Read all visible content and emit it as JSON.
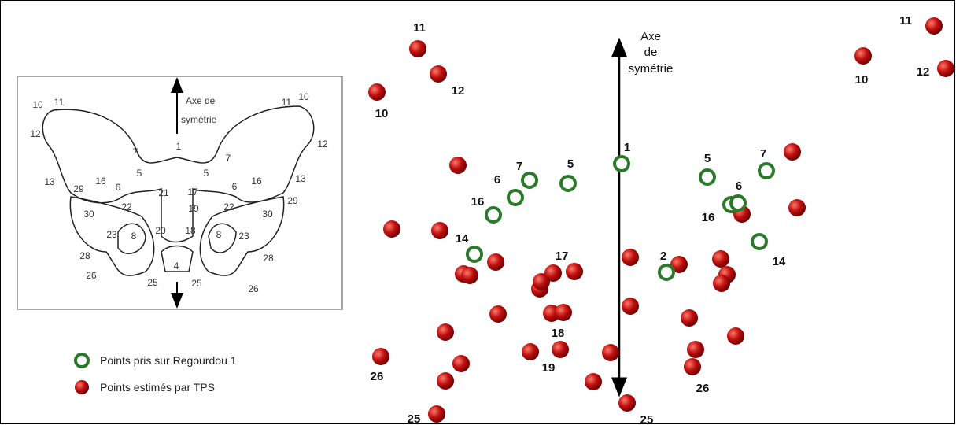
{
  "inset": {
    "axis_label": [
      "Axe de",
      "symétrie"
    ],
    "landmarks": [
      "10",
      "11",
      "12",
      "7",
      "1",
      "7",
      "11",
      "10",
      "12",
      "5",
      "5",
      "13",
      "16",
      "6",
      "21",
      "17",
      "6",
      "16",
      "13",
      "29",
      "29",
      "19",
      "22",
      "22",
      "30",
      "30",
      "23",
      "8",
      "20",
      "18",
      "8",
      "23",
      "28",
      "28",
      "4",
      "26",
      "25",
      "25",
      "26"
    ]
  },
  "axis_label": [
    "Axe",
    "de",
    "symétrie"
  ],
  "point_labels": [
    "11",
    "12",
    "10",
    "7",
    "5",
    "6",
    "16",
    "14",
    "1",
    "17",
    "18",
    "19",
    "26",
    "25",
    "5",
    "7",
    "6",
    "16",
    "14",
    "2",
    "26",
    "25",
    "11",
    "10",
    "12"
  ],
  "legend": [
    "Points pris sur Regourdou 1",
    "Points estimés par TPS"
  ]
}
